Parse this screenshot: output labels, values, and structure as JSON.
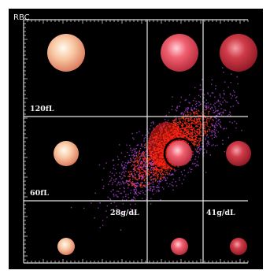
{
  "chart_data": {
    "type": "scatter",
    "title": "RBC",
    "xlabel": "",
    "ylabel": "",
    "x_threshold_labels": [
      "28g/dL",
      "41g/dL"
    ],
    "y_threshold_labels": [
      "120fL",
      "60fL"
    ],
    "grid": true,
    "background": "#000000",
    "cells": [
      {
        "row": "top",
        "col": "left",
        "size": "large",
        "color": "#f5b08a"
      },
      {
        "row": "top",
        "col": "middle",
        "size": "large",
        "color": "#ef5a6a"
      },
      {
        "row": "top",
        "col": "right",
        "size": "large",
        "color": "#c9343f"
      },
      {
        "row": "middle",
        "col": "left",
        "size": "medium",
        "color": "#f5b08a"
      },
      {
        "row": "middle",
        "col": "middle",
        "size": "medium",
        "color": "#ef5a6a",
        "highlighted": true
      },
      {
        "row": "middle",
        "col": "right",
        "size": "medium",
        "color": "#c9343f"
      },
      {
        "row": "bottom",
        "col": "left",
        "size": "small",
        "color": "#f5b08a"
      },
      {
        "row": "bottom",
        "col": "middle",
        "size": "small",
        "color": "#ef5a6a"
      },
      {
        "row": "bottom",
        "col": "right",
        "size": "small",
        "color": "#c9343f"
      }
    ],
    "scatter_cloud": {
      "color": "#ff2a1a",
      "edge_color": "#b04ad8"
    }
  }
}
